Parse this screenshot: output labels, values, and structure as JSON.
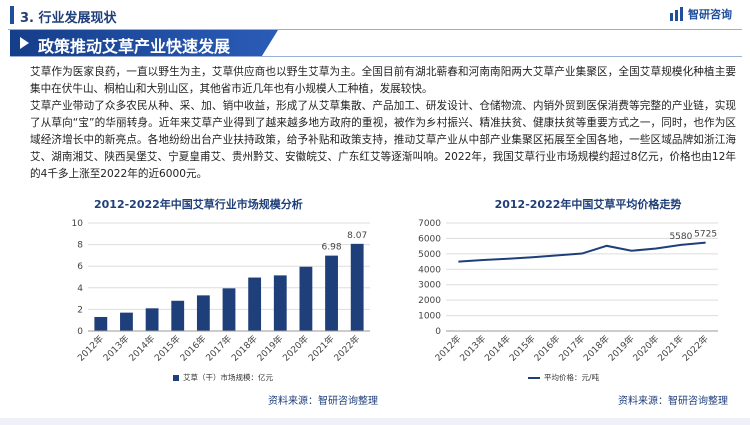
{
  "header": {
    "section": "3. 行业发展现状",
    "logo_text": "智研咨询"
  },
  "banner": {
    "title": "政策推动艾草产业快速发展"
  },
  "body": {
    "para1": "艾草作为医家良药，一直以野生为主，艾草供应商也以野生艾草为主。全国目前有湖北蕲春和河南南阳两大艾草产业集聚区，全国艾草规模化种植主要集中在伏牛山、桐柏山和大别山区，其他省市近几年也有小规模人工种植，发展较快。",
    "para2": "艾草产业带动了众多农民从种、采、加、销中收益，形成了从艾草集散、产品加工、研发设计、仓储物流、内销外贸到医保消费等完整的产业链，实现了从草向“宝”的华丽转身。近年来艾草产业得到了越来越多地方政府的重视，被作为乡村振兴、精准扶贫、健康扶贫等重要方式之一，同时，也作为区域经济增长中的新亮点。各地纷纷出台产业扶持政策，给予补贴和政策支持，推动艾草产业从中部产业集聚区拓展至全国各地，一些区域品牌如浙江海艾、湖南湘艾、陕西吴堡艾、宁夏皇甫艾、贵州黔艾、安徽皖艾、广东红艾等逐渐叫响。2022年，我国艾草行业市场规模约超过8亿元，价格也由12年的4千多上涨至2022年的近6000元。"
  },
  "colors": {
    "primary": "#1f3f7a",
    "banner_start": "#153e8a",
    "banner_end": "#2a5cb8",
    "grid": "#dddddd"
  },
  "chart_data": [
    {
      "type": "bar",
      "title": "2012-2022年中国艾草行业市场规模分析",
      "categories": [
        "2012年",
        "2013年",
        "2014年",
        "2015年",
        "2016年",
        "2017年",
        "2018年",
        "2019年",
        "2020年",
        "2021年",
        "2022年"
      ],
      "series": [
        {
          "name": "艾草（干）市场规模：亿元",
          "values": [
            1.3,
            1.7,
            2.1,
            2.8,
            3.3,
            3.95,
            4.95,
            5.15,
            5.95,
            6.98,
            8.07
          ]
        }
      ],
      "labeled_values": [
        null,
        null,
        null,
        null,
        null,
        null,
        null,
        null,
        null,
        "6.98",
        "8.07"
      ],
      "y_ticks": [
        "0",
        "2",
        "4",
        "6",
        "8",
        "10"
      ],
      "ylim": [
        0,
        10
      ],
      "grid": true,
      "legend_position": "bottom",
      "source": "资料来源：智研咨询整理"
    },
    {
      "type": "line",
      "title": "2012-2022年中国艾草平均价格走势",
      "categories": [
        "2012年",
        "2013年",
        "2014年",
        "2015年",
        "2016年",
        "2017年",
        "2018年",
        "2019年",
        "2020年",
        "2021年",
        "2022年"
      ],
      "series": [
        {
          "name": "平均价格：元/吨",
          "values": [
            4500,
            4600,
            4680,
            4780,
            4900,
            5020,
            5520,
            5200,
            5350,
            5580,
            5725
          ]
        }
      ],
      "labeled_values": [
        null,
        null,
        null,
        null,
        null,
        null,
        null,
        null,
        null,
        "5580",
        "5725"
      ],
      "y_ticks": [
        "0",
        "1000",
        "2000",
        "3000",
        "4000",
        "5000",
        "6000",
        "7000"
      ],
      "ylim": [
        0,
        7000
      ],
      "grid": true,
      "legend_position": "bottom",
      "source": "资料来源：智研咨询整理"
    }
  ]
}
